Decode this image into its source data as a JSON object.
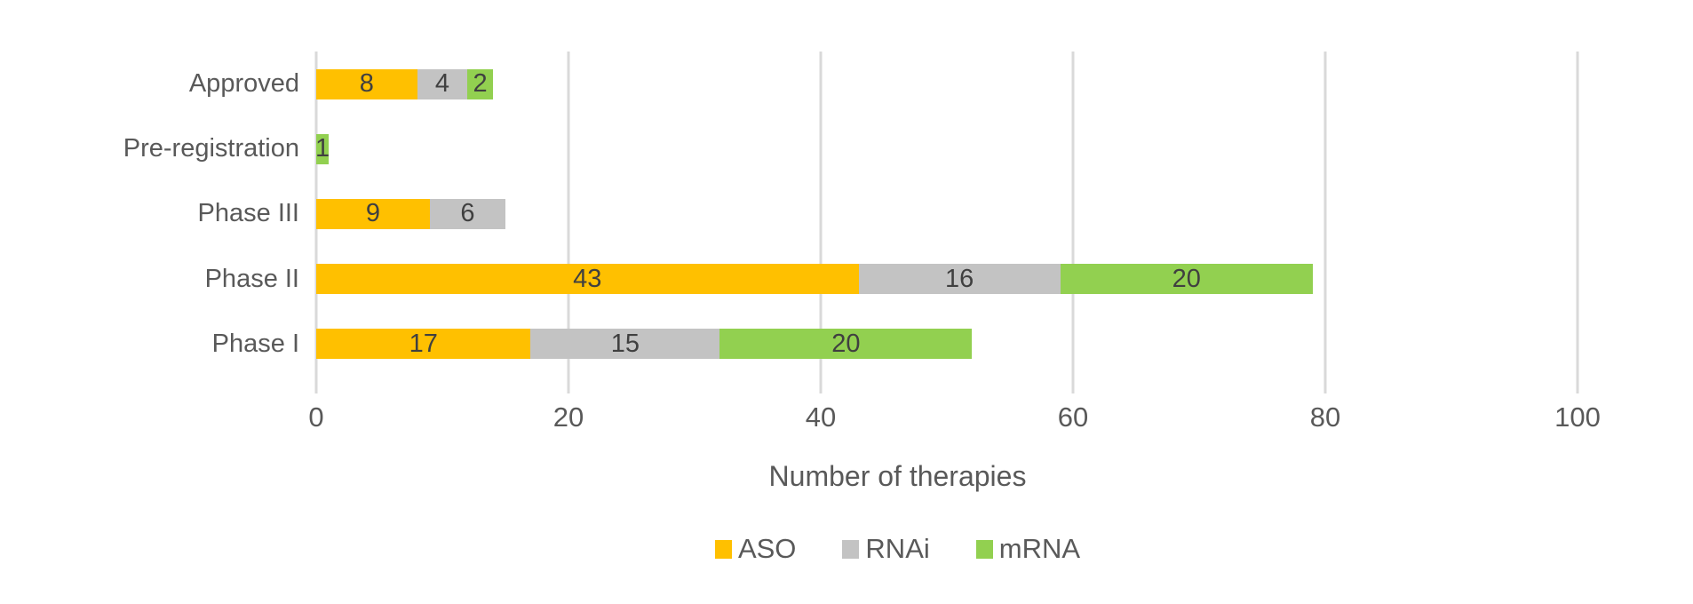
{
  "chart_data": {
    "type": "bar",
    "orientation": "horizontal",
    "stacked": true,
    "title": "",
    "xlabel": "Number of therapies",
    "ylabel": "",
    "categories": [
      "Approved",
      "Pre-registration",
      "Phase III",
      "Phase II",
      "Phase I"
    ],
    "series": [
      {
        "name": "ASO",
        "color": "#FFC000",
        "values": [
          8,
          0,
          9,
          43,
          17
        ]
      },
      {
        "name": "RNAi",
        "color": "#C3C3C3",
        "values": [
          4,
          0,
          6,
          16,
          15
        ]
      },
      {
        "name": "mRNA",
        "color": "#92D050",
        "values": [
          2,
          1,
          0,
          20,
          20
        ]
      }
    ],
    "totals": [
      14,
      1,
      15,
      79,
      52
    ],
    "xlim": [
      0,
      100
    ],
    "xticks": [
      0,
      20,
      40,
      60,
      80,
      100
    ],
    "grid": true,
    "legend_position": "bottom"
  },
  "colors": {
    "background": "#FFFFFF",
    "gridline": "#D9D9D9",
    "axis_text": "#595959",
    "data_label": "#404040"
  }
}
